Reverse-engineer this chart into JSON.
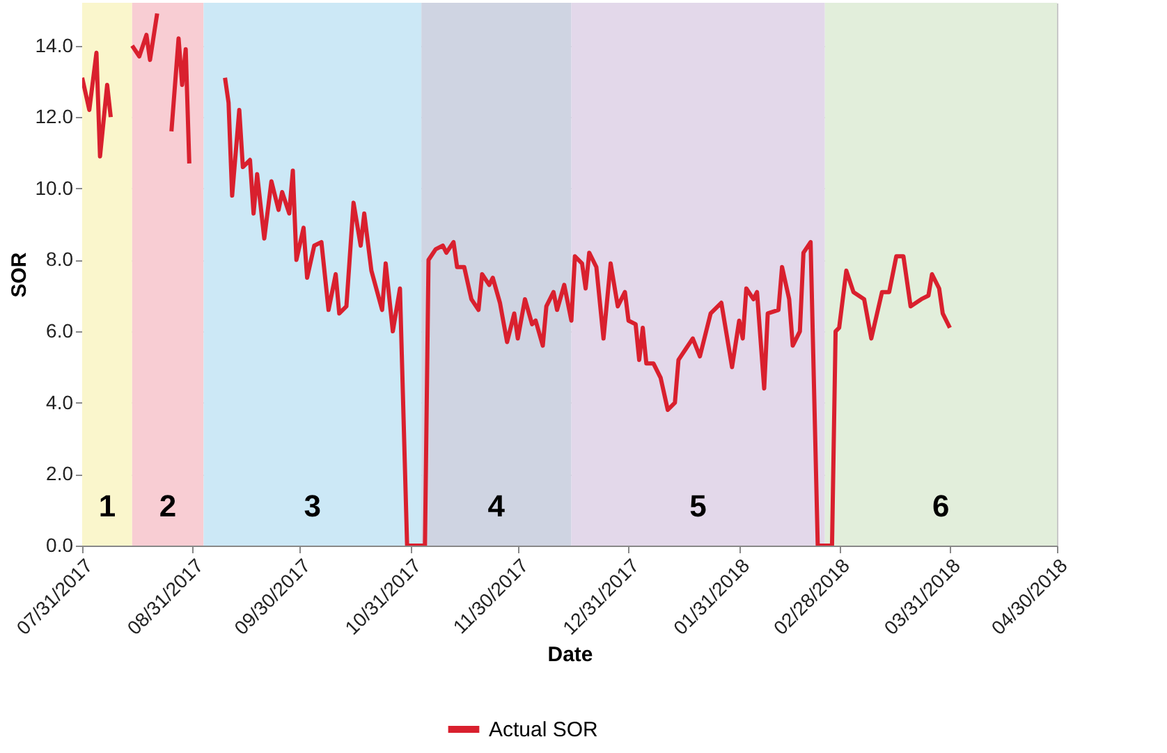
{
  "chart_data": {
    "type": "line",
    "xlabel": "Date",
    "ylabel": "SOR",
    "x": [
      "2017-07-31",
      "2017-08-02",
      "2017-08-04",
      "2017-08-05",
      "2017-08-07",
      "2017-08-08",
      "2017-08-10",
      "2017-08-13",
      "2017-08-14",
      "2017-08-16",
      "2017-08-18",
      "2017-08-19",
      "2017-08-21",
      "2017-08-23",
      "2017-08-25",
      "2017-08-27",
      "2017-08-28",
      "2017-08-29",
      "2017-08-30",
      "2017-08-31",
      "2017-09-07",
      "2017-09-09",
      "2017-09-10",
      "2017-09-11",
      "2017-09-13",
      "2017-09-14",
      "2017-09-16",
      "2017-09-17",
      "2017-09-18",
      "2017-09-20",
      "2017-09-22",
      "2017-09-24",
      "2017-09-25",
      "2017-09-27",
      "2017-09-28",
      "2017-09-29",
      "2017-10-01",
      "2017-10-02",
      "2017-10-04",
      "2017-10-06",
      "2017-10-08",
      "2017-10-10",
      "2017-10-11",
      "2017-10-13",
      "2017-10-15",
      "2017-10-17",
      "2017-10-18",
      "2017-10-20",
      "2017-10-23",
      "2017-10-24",
      "2017-10-26",
      "2017-10-28",
      "2017-10-30",
      "2017-11-04",
      "2017-11-05",
      "2017-11-07",
      "2017-11-09",
      "2017-11-10",
      "2017-11-12",
      "2017-11-13",
      "2017-11-15",
      "2017-11-17",
      "2017-11-19",
      "2017-11-20",
      "2017-11-22",
      "2017-11-23",
      "2017-11-25",
      "2017-11-27",
      "2017-11-29",
      "2017-11-30",
      "2017-12-02",
      "2017-12-04",
      "2017-12-05",
      "2017-12-07",
      "2017-12-08",
      "2017-12-10",
      "2017-12-11",
      "2017-12-13",
      "2017-12-15",
      "2017-12-16",
      "2017-12-18",
      "2017-12-19",
      "2017-12-20",
      "2017-12-22",
      "2017-12-24",
      "2017-12-26",
      "2017-12-28",
      "2017-12-30",
      "2017-12-31",
      "2018-01-02",
      "2018-01-03",
      "2018-01-04",
      "2018-01-05",
      "2018-01-07",
      "2018-01-09",
      "2018-01-11",
      "2018-01-13",
      "2018-01-14",
      "2018-01-16",
      "2018-01-18",
      "2018-01-20",
      "2018-01-23",
      "2018-01-26",
      "2018-01-29",
      "2018-01-31",
      "2018-02-01",
      "2018-02-02",
      "2018-02-04",
      "2018-02-05",
      "2018-02-07",
      "2018-02-08",
      "2018-02-11",
      "2018-02-12",
      "2018-02-14",
      "2018-02-15",
      "2018-02-17",
      "2018-02-18",
      "2018-02-20",
      "2018-02-22",
      "2018-02-26",
      "2018-02-27",
      "2018-02-28",
      "2018-03-02",
      "2018-03-04",
      "2018-03-07",
      "2018-03-09",
      "2018-03-12",
      "2018-03-14",
      "2018-03-16",
      "2018-03-18",
      "2018-03-20",
      "2018-03-23",
      "2018-03-25",
      "2018-03-26",
      "2018-03-28",
      "2018-03-29",
      "2018-03-31"
    ],
    "series": [
      {
        "name": "Actual SOR",
        "color": "#d9202e",
        "values": [
          13.1,
          12.2,
          13.8,
          10.9,
          12.9,
          12.0,
          null,
          null,
          14.0,
          13.7,
          14.3,
          13.6,
          14.9,
          null,
          11.6,
          14.2,
          12.9,
          13.9,
          10.7,
          null,
          null,
          13.1,
          12.4,
          9.8,
          12.2,
          10.6,
          10.8,
          9.3,
          10.4,
          8.6,
          10.2,
          9.4,
          9.9,
          9.3,
          10.5,
          8.0,
          8.9,
          7.5,
          8.4,
          8.5,
          6.6,
          7.6,
          6.5,
          6.7,
          9.6,
          8.4,
          9.3,
          7.7,
          6.6,
          7.9,
          6.0,
          7.2,
          0.0,
          0.0,
          8.0,
          8.3,
          8.4,
          8.2,
          8.5,
          7.8,
          7.8,
          6.9,
          6.6,
          7.6,
          7.3,
          7.5,
          6.8,
          5.7,
          6.5,
          5.8,
          6.9,
          6.2,
          6.3,
          5.6,
          6.7,
          7.1,
          6.6,
          7.3,
          6.3,
          8.1,
          7.9,
          7.2,
          8.2,
          7.8,
          5.8,
          7.9,
          6.7,
          7.1,
          6.3,
          6.2,
          5.2,
          6.1,
          5.1,
          5.1,
          4.7,
          3.8,
          4.0,
          5.2,
          5.5,
          5.8,
          5.3,
          6.5,
          6.8,
          5.0,
          6.3,
          5.8,
          7.2,
          6.9,
          7.1,
          4.4,
          6.5,
          6.6,
          7.8,
          6.9,
          5.6,
          6.0,
          8.2,
          8.5,
          0.0,
          0.0,
          6.0,
          6.1,
          7.7,
          7.1,
          6.9,
          5.8,
          7.1,
          7.1,
          8.1,
          8.1,
          6.7,
          6.9,
          7.0,
          7.6,
          7.2,
          6.5,
          6.1
        ]
      }
    ],
    "xlim": [
      "2017-07-31",
      "2018-04-30"
    ],
    "xticks": [
      {
        "value": "2017-07-31",
        "label": "07/31/2017"
      },
      {
        "value": "2017-08-31",
        "label": "08/31/2017"
      },
      {
        "value": "2017-09-30",
        "label": "09/30/2017"
      },
      {
        "value": "2017-10-31",
        "label": "10/31/2017"
      },
      {
        "value": "2017-11-30",
        "label": "11/30/2017"
      },
      {
        "value": "2017-12-31",
        "label": "12/31/2017"
      },
      {
        "value": "2018-01-31",
        "label": "01/31/2018"
      },
      {
        "value": "2018-02-28",
        "label": "02/28/2018"
      },
      {
        "value": "2018-03-31",
        "label": "03/31/2018"
      },
      {
        "value": "2018-04-30",
        "label": "04/30/2018"
      }
    ],
    "ylim": [
      0,
      15.2
    ],
    "yticks": [
      {
        "value": 0,
        "label": "0.0"
      },
      {
        "value": 2,
        "label": "2.0"
      },
      {
        "value": 4,
        "label": "4.0"
      },
      {
        "value": 6,
        "label": "6.0"
      },
      {
        "value": 8,
        "label": "8.0"
      },
      {
        "value": 10,
        "label": "10.0"
      },
      {
        "value": 12,
        "label": "12.0"
      },
      {
        "value": 14,
        "label": "14.0"
      }
    ],
    "bands": [
      {
        "axis": "x",
        "from": "2017-07-31",
        "to": "2017-08-14",
        "label": "1",
        "color": "#faf6cc"
      },
      {
        "axis": "x",
        "from": "2017-08-14",
        "to": "2017-09-03",
        "label": "2",
        "color": "#f8cdd3"
      },
      {
        "axis": "x",
        "from": "2017-09-03",
        "to": "2017-11-03",
        "label": "3",
        "color": "#cce8f6"
      },
      {
        "axis": "x",
        "from": "2017-11-03",
        "to": "2017-12-15",
        "label": "4",
        "color": "#cfd4e2"
      },
      {
        "axis": "x",
        "from": "2017-12-15",
        "to": "2018-02-24",
        "label": "5",
        "color": "#e3d8ea"
      },
      {
        "axis": "x",
        "from": "2018-02-24",
        "to": "2018-04-30",
        "label": "6",
        "color": "#e2eedb"
      }
    ],
    "grid": true,
    "legend": "bottom"
  }
}
